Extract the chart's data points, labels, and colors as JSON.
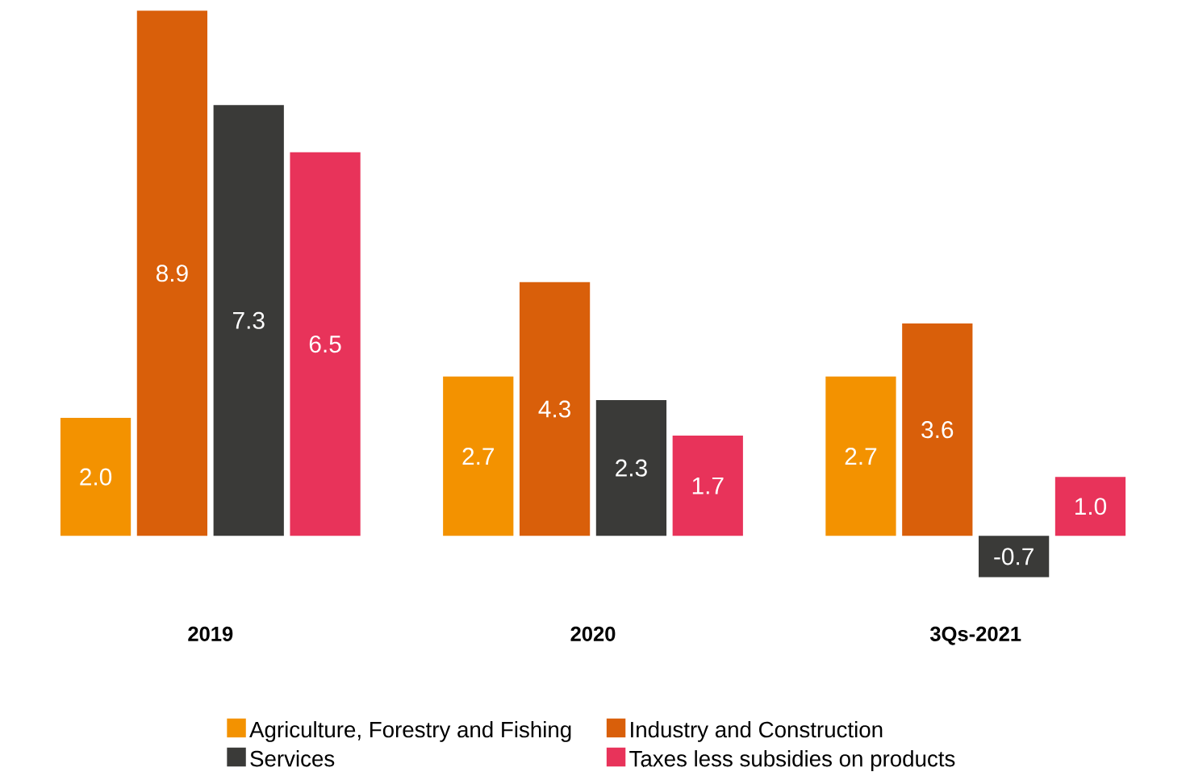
{
  "chart_data": {
    "type": "bar",
    "categories": [
      "2019",
      "2020",
      "3Qs-2021"
    ],
    "series": [
      {
        "name": "Agriculture, Forestry and Fishing",
        "color": "#f39200",
        "values": [
          2.0,
          2.7,
          2.7
        ],
        "value_labels": [
          "2.0",
          "2.7",
          "2.7"
        ]
      },
      {
        "name": "Industry and Construction",
        "color": "#d95f0a",
        "values": [
          8.9,
          4.3,
          3.6
        ],
        "value_labels": [
          "8.9",
          "4.3",
          "3.6"
        ]
      },
      {
        "name": "Services",
        "color": "#3a3a38",
        "values": [
          7.3,
          2.3,
          -0.7
        ],
        "value_labels": [
          "7.3",
          "2.3",
          "-0.7"
        ]
      },
      {
        "name": "Taxes less subsidies on products",
        "color": "#e8335a",
        "values": [
          6.5,
          1.7,
          1.0
        ],
        "value_labels": [
          "6.5",
          "1.7",
          "1.0"
        ]
      }
    ],
    "legend": "bottom"
  }
}
